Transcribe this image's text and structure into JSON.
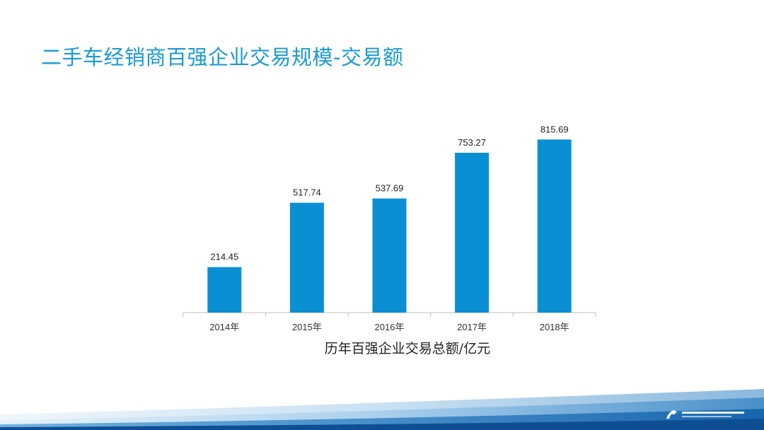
{
  "slide": {
    "title": "二手车经销商百强企业交易规模-交易额"
  },
  "chart_data": {
    "type": "bar",
    "categories": [
      "2014年",
      "2015年",
      "2016年",
      "2017年",
      "2018年"
    ],
    "values": [
      214.45,
      517.74,
      537.69,
      753.27,
      815.69
    ],
    "data_labels": [
      "214.45",
      "517.74",
      "537.69",
      "753.27",
      "815.69"
    ],
    "xlabel": "历年百强企业交易总额/亿元",
    "ylabel": "",
    "ylim": [
      0,
      900
    ],
    "grid": false,
    "legend": "none",
    "bar_color": "#0b8fd4"
  },
  "colors": {
    "title": "#1a9ad6",
    "bar": "#0b8fd4",
    "footer_wave": "#2c7fc1"
  },
  "icons": {
    "footer_logo": "organization-logo-icon"
  }
}
